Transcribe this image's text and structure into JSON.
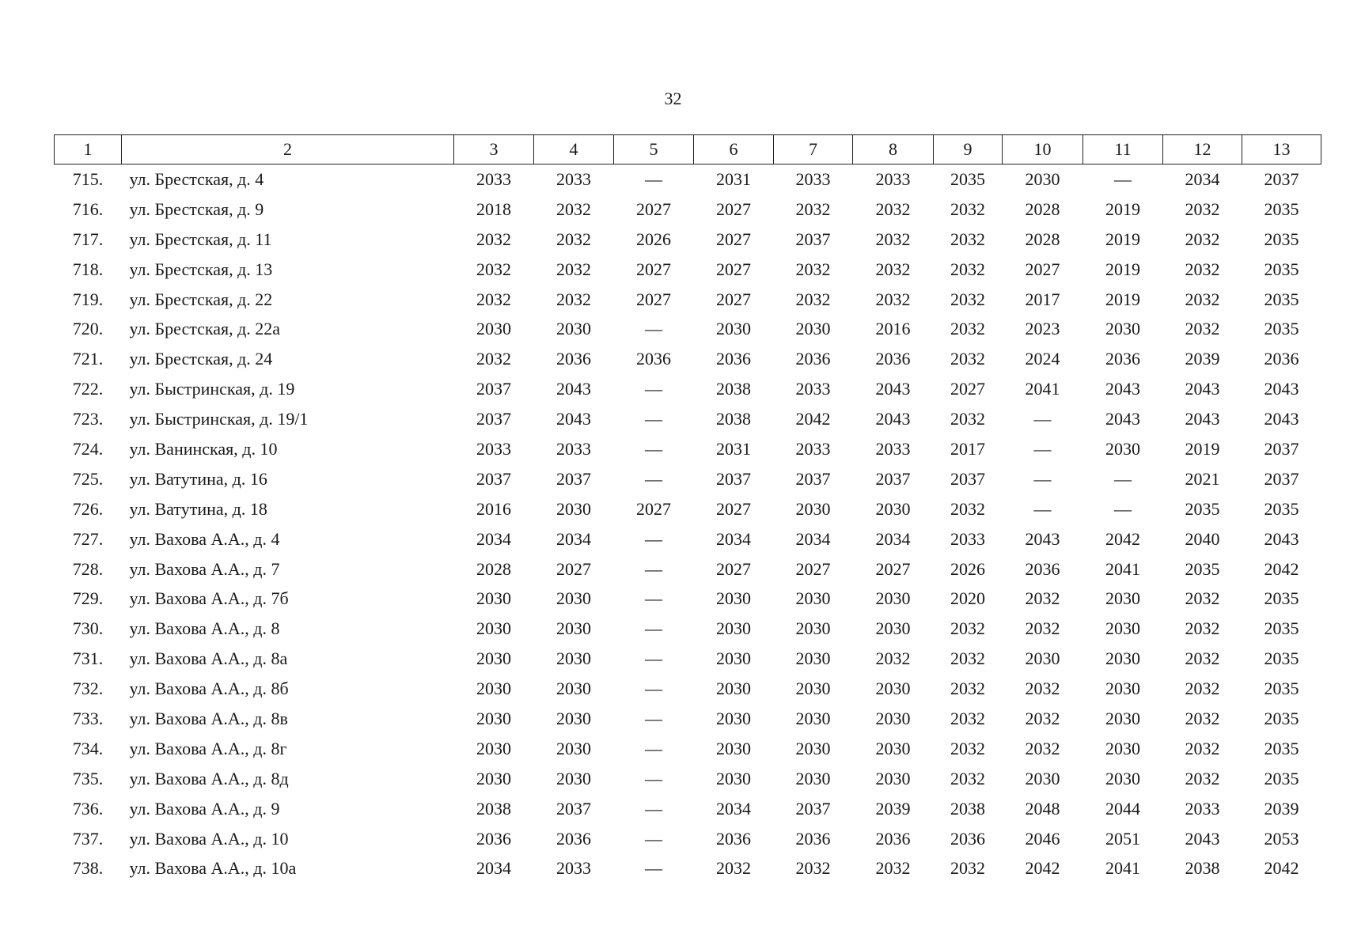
{
  "page_number": 32,
  "table": {
    "header": [
      1,
      2,
      3,
      4,
      5,
      6,
      7,
      8,
      9,
      10,
      11,
      12,
      13
    ],
    "rows": [
      [
        "715.",
        "ул. Брестская, д. 4",
        2033,
        2033,
        "—",
        2031,
        2033,
        2033,
        2035,
        2030,
        "—",
        2034,
        2037
      ],
      [
        "716.",
        "ул. Брестская, д. 9",
        2018,
        2032,
        2027,
        2027,
        2032,
        2032,
        2032,
        2028,
        2019,
        2032,
        2035
      ],
      [
        "717.",
        "ул. Брестская, д. 11",
        2032,
        2032,
        2026,
        2027,
        2037,
        2032,
        2032,
        2028,
        2019,
        2032,
        2035
      ],
      [
        "718.",
        "ул. Брестская, д. 13",
        2032,
        2032,
        2027,
        2027,
        2032,
        2032,
        2032,
        2027,
        2019,
        2032,
        2035
      ],
      [
        "719.",
        "ул. Брестская, д. 22",
        2032,
        2032,
        2027,
        2027,
        2032,
        2032,
        2032,
        2017,
        2019,
        2032,
        2035
      ],
      [
        "720.",
        "ул. Брестская, д. 22а",
        2030,
        2030,
        "—",
        2030,
        2030,
        2016,
        2032,
        2023,
        2030,
        2032,
        2035
      ],
      [
        "721.",
        "ул. Брестская, д. 24",
        2032,
        2036,
        2036,
        2036,
        2036,
        2036,
        2032,
        2024,
        2036,
        2039,
        2036
      ],
      [
        "722.",
        "ул. Быстринская, д. 19",
        2037,
        2043,
        "—",
        2038,
        2033,
        2043,
        2027,
        2041,
        2043,
        2043,
        2043
      ],
      [
        "723.",
        "ул. Быстринская, д. 19/1",
        2037,
        2043,
        "—",
        2038,
        2042,
        2043,
        2032,
        "—",
        2043,
        2043,
        2043
      ],
      [
        "724.",
        "ул. Ванинская, д. 10",
        2033,
        2033,
        "—",
        2031,
        2033,
        2033,
        2017,
        "—",
        2030,
        2019,
        2037
      ],
      [
        "725.",
        "ул. Ватутина, д. 16",
        2037,
        2037,
        "—",
        2037,
        2037,
        2037,
        2037,
        "—",
        "—",
        2021,
        2037
      ],
      [
        "726.",
        "ул. Ватутина, д. 18",
        2016,
        2030,
        2027,
        2027,
        2030,
        2030,
        2032,
        "—",
        "—",
        2035,
        2035
      ],
      [
        "727.",
        "ул. Вахова А.А., д. 4",
        2034,
        2034,
        "—",
        2034,
        2034,
        2034,
        2033,
        2043,
        2042,
        2040,
        2043
      ],
      [
        "728.",
        "ул. Вахова А.А., д. 7",
        2028,
        2027,
        "—",
        2027,
        2027,
        2027,
        2026,
        2036,
        2041,
        2035,
        2042
      ],
      [
        "729.",
        "ул. Вахова А.А., д. 7б",
        2030,
        2030,
        "—",
        2030,
        2030,
        2030,
        2020,
        2032,
        2030,
        2032,
        2035
      ],
      [
        "730.",
        "ул. Вахова А.А., д. 8",
        2030,
        2030,
        "—",
        2030,
        2030,
        2030,
        2032,
        2032,
        2030,
        2032,
        2035
      ],
      [
        "731.",
        "ул. Вахова А.А., д. 8а",
        2030,
        2030,
        "—",
        2030,
        2030,
        2032,
        2032,
        2030,
        2030,
        2032,
        2035
      ],
      [
        "732.",
        "ул. Вахова А.А., д. 8б",
        2030,
        2030,
        "—",
        2030,
        2030,
        2030,
        2032,
        2032,
        2030,
        2032,
        2035
      ],
      [
        "733.",
        "ул. Вахова А.А., д. 8в",
        2030,
        2030,
        "—",
        2030,
        2030,
        2030,
        2032,
        2032,
        2030,
        2032,
        2035
      ],
      [
        "734.",
        "ул. Вахова А.А., д. 8г",
        2030,
        2030,
        "—",
        2030,
        2030,
        2030,
        2032,
        2032,
        2030,
        2032,
        2035
      ],
      [
        "735.",
        "ул. Вахова А.А., д. 8д",
        2030,
        2030,
        "—",
        2030,
        2030,
        2030,
        2032,
        2030,
        2030,
        2032,
        2035
      ],
      [
        "736.",
        "ул. Вахова А.А., д. 9",
        2038,
        2037,
        "—",
        2034,
        2037,
        2039,
        2038,
        2048,
        2044,
        2033,
        2039
      ],
      [
        "737.",
        "ул. Вахова А.А., д. 10",
        2036,
        2036,
        "—",
        2036,
        2036,
        2036,
        2036,
        2046,
        2051,
        2043,
        2053
      ],
      [
        "738.",
        "ул. Вахова А.А., д. 10а",
        2034,
        2033,
        "—",
        2032,
        2032,
        2032,
        2032,
        2042,
        2041,
        2038,
        2042
      ]
    ]
  }
}
